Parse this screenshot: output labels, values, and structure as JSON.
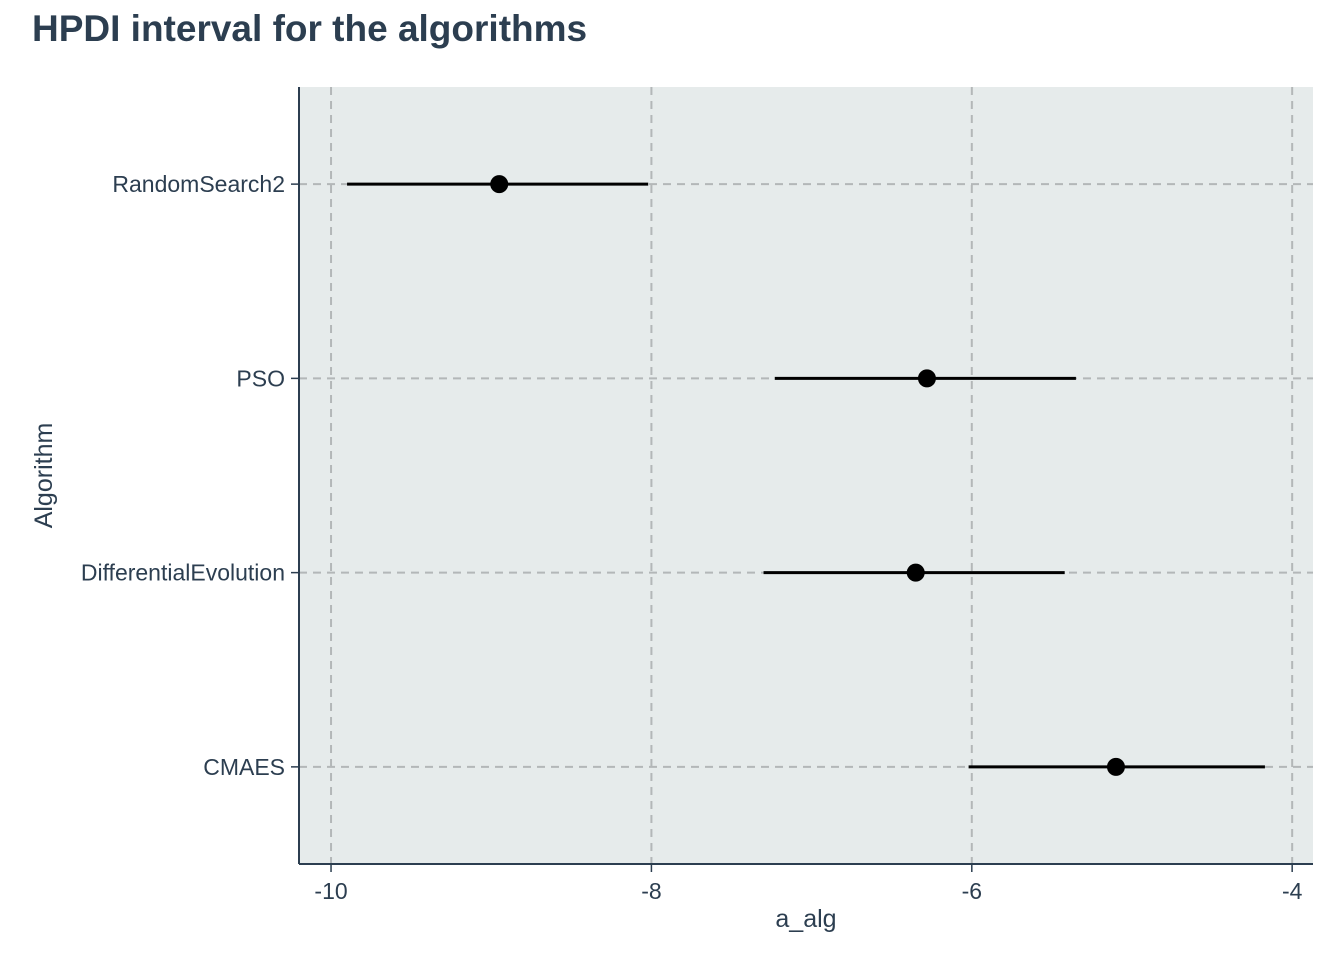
{
  "chart_data": {
    "type": "scatter",
    "title": "HPDI interval for the algorithms",
    "xlabel": "a_alg",
    "ylabel": "Algorithm",
    "xlim": [
      -10.2,
      -3.87
    ],
    "xticks": [
      -10,
      -8,
      -6,
      -4
    ],
    "xtick_labels": [
      "-10",
      "-8",
      "-6",
      "-4"
    ],
    "categories": [
      "RandomSearch2",
      "PSO",
      "DifferentialEvolution",
      "CMAES"
    ],
    "point": [
      -8.95,
      -6.28,
      -6.35,
      -5.1
    ],
    "lower": [
      -9.9,
      -7.23,
      -7.3,
      -6.02
    ],
    "upper": [
      -8.02,
      -5.35,
      -5.42,
      -4.17
    ],
    "grid": true,
    "grid_style": "dashed",
    "colors": {
      "panel": "#e6ebeb",
      "grid": "#b3b7b8",
      "axis": "#2c3e50",
      "marks": "#000000",
      "text": "#2c3e50"
    }
  }
}
